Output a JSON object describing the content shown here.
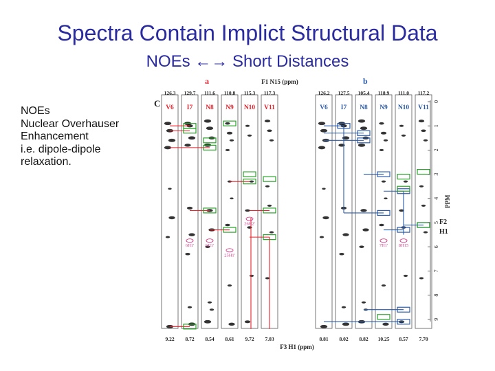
{
  "slide": {
    "title": "Spectra Contain Implict Structural Data",
    "subtitle": "NOEs ←→ Short Distances",
    "notes": [
      "NOEs",
      "Nuclear Overhauser",
      "Enhancement",
      "i.e. dipole-dipole",
      "relaxation."
    ]
  },
  "figure": {
    "panel_c_label": "C",
    "panel_a_label": "a",
    "panel_b_label": "b",
    "top_axis_label": "F1 N15 (ppm)",
    "bottom_axis_label": "F3 H1 (ppm)",
    "right_axis_labels": [
      "PPM",
      "F2",
      "H1"
    ],
    "ppm_ticks": [
      "0",
      "1",
      "2",
      "3",
      "4",
      "5",
      "6",
      "7",
      "8",
      "9"
    ],
    "colors": {
      "red": "#e8212b",
      "blue": "#2a5aa8",
      "green": "#2aa02a",
      "frame": "#555555"
    },
    "panel_a": {
      "n15": [
        "126.3",
        "129.7",
        "111.6",
        "110.8",
        "115.3",
        "117.3"
      ],
      "residues": [
        "V6",
        "I7",
        "N8",
        "N9",
        "N10",
        "V11"
      ],
      "h1": [
        "9.22",
        "8.72",
        "8.54",
        "8.61",
        "9.72",
        "7.03"
      ],
      "annotations": [
        "6H1'",
        "6H1'",
        "25H1'",
        "26H2'"
      ]
    },
    "panel_b": {
      "n15": [
        "126.2",
        "127.5",
        "105.4",
        "118.9",
        "111.0",
        "117.2"
      ],
      "residues": [
        "V6",
        "I7",
        "N8",
        "N9",
        "N10",
        "V11"
      ],
      "h1": [
        "8.81",
        "8.02",
        "8.82",
        "10.25",
        "8.57",
        "7.70"
      ],
      "annotations": [
        "7H1'",
        "8H15"
      ]
    }
  }
}
